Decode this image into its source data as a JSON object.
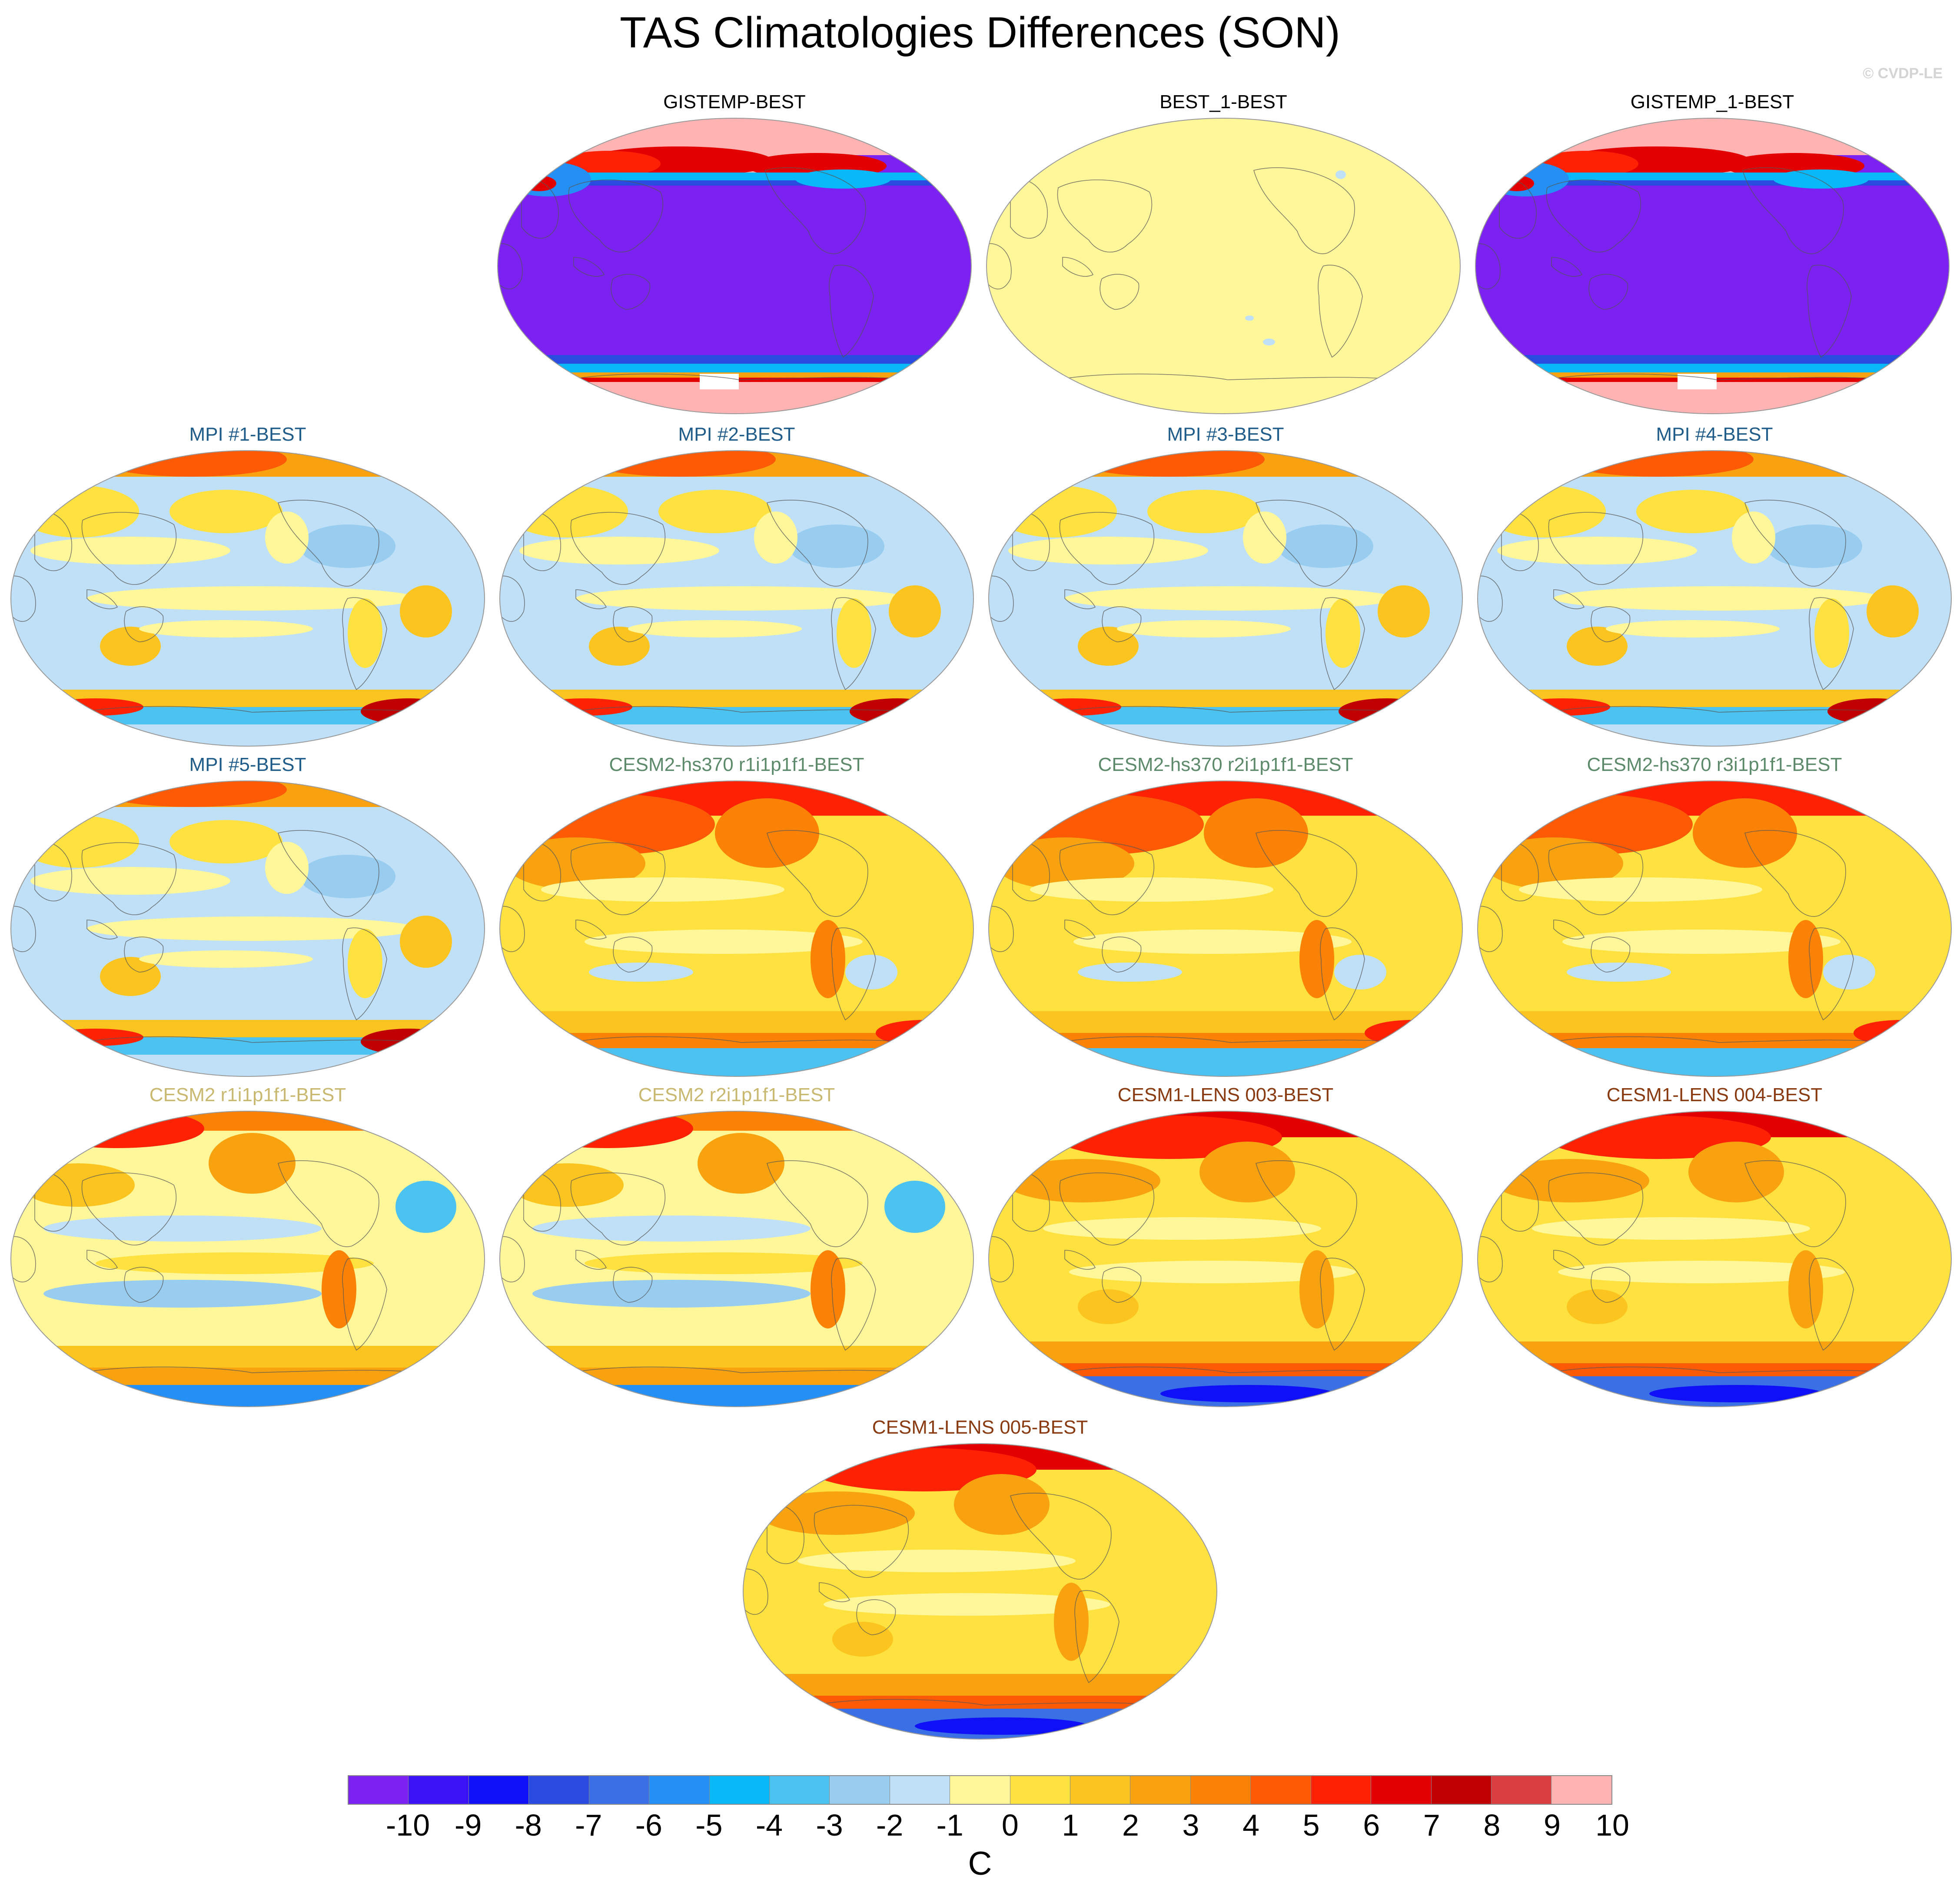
{
  "title": "TAS Climatologies Differences (SON)",
  "credit": "© CVDP-LE",
  "panels": [
    {
      "label": "GISTEMP-BEST",
      "color": "#000000",
      "style": "obs"
    },
    {
      "label": "BEST_1-BEST",
      "color": "#000000",
      "style": "flat"
    },
    {
      "label": "GISTEMP_1-BEST",
      "color": "#000000",
      "style": "obs"
    },
    {
      "label": "MPI #1-BEST",
      "color": "#1f5c8a",
      "style": "mpi"
    },
    {
      "label": "MPI #2-BEST",
      "color": "#1f5c8a",
      "style": "mpi"
    },
    {
      "label": "MPI #3-BEST",
      "color": "#1f5c8a",
      "style": "mpi"
    },
    {
      "label": "MPI #4-BEST",
      "color": "#1f5c8a",
      "style": "mpi"
    },
    {
      "label": "MPI #5-BEST",
      "color": "#1f5c8a",
      "style": "mpi"
    },
    {
      "label": "CESM2-hs370 r1i1p1f1-BEST",
      "color": "#5d8a6b",
      "style": "warm"
    },
    {
      "label": "CESM2-hs370 r2i1p1f1-BEST",
      "color": "#5d8a6b",
      "style": "warm"
    },
    {
      "label": "CESM2-hs370 r3i1p1f1-BEST",
      "color": "#5d8a6b",
      "style": "warm"
    },
    {
      "label": "CESM2 r1i1p1f1-BEST",
      "color": "#c9b870",
      "style": "cesm2"
    },
    {
      "label": "CESM2 r2i1p1f1-BEST",
      "color": "#c9b870",
      "style": "cesm2"
    },
    {
      "label": "CESM1-LENS 003-BEST",
      "color": "#8a3a10",
      "style": "lens"
    },
    {
      "label": "CESM1-LENS 004-BEST",
      "color": "#8a3a10",
      "style": "lens"
    },
    {
      "label": "CESM1-LENS 005-BEST",
      "color": "#8a3a10",
      "style": "lens"
    }
  ],
  "colorbar": {
    "unit": "C",
    "colors": [
      "#7b22f2",
      "#3b12f5",
      "#0f0ff8",
      "#2a4be0",
      "#3a6fe6",
      "#2490f6",
      "#08b8f8",
      "#4cc2f0",
      "#98cdf0",
      "#bfe0f6",
      "#fff79a",
      "#ffe140",
      "#fbc41e",
      "#f9a20f",
      "#fb8205",
      "#fc5a05",
      "#fd2204",
      "#e30000",
      "#c00000",
      "#db3e3e",
      "#ffb3b3"
    ],
    "labels": [
      "-10",
      "-9",
      "-8",
      "-7",
      "-6",
      "-5",
      "-4",
      "-3",
      "-2",
      "-1",
      "0",
      "1",
      "2",
      "3",
      "4",
      "5",
      "6",
      "7",
      "8",
      "9",
      "10"
    ]
  }
}
